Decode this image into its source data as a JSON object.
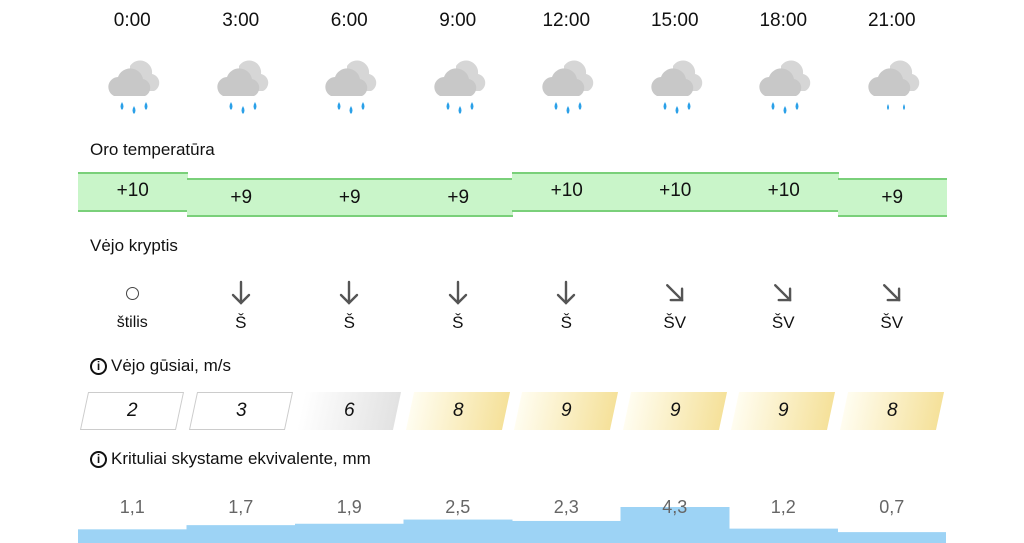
{
  "hours": [
    "0:00",
    "3:00",
    "6:00",
    "9:00",
    "12:00",
    "15:00",
    "18:00",
    "21:00"
  ],
  "weather_icons": [
    "cloud-rain-icon",
    "cloud-rain-icon",
    "cloud-rain-icon",
    "cloud-rain-icon",
    "cloud-rain-icon",
    "cloud-rain-icon",
    "cloud-rain-icon",
    "cloud-light-rain-icon"
  ],
  "temperature": {
    "label": "Oro temperatūra",
    "values": [
      "+10",
      "+9",
      "+9",
      "+9",
      "+10",
      "+10",
      "+10",
      "+9"
    ],
    "color": "#c9f5c9"
  },
  "wind_direction": {
    "label": "Vėjo kryptis",
    "arrows": [
      "calm",
      "down",
      "down",
      "down",
      "down",
      "down-right",
      "down-right",
      "down-right"
    ],
    "labels": [
      "štilis",
      "Š",
      "Š",
      "Š",
      "Š",
      "ŠV",
      "ŠV",
      "ŠV"
    ]
  },
  "wind_gusts": {
    "label": "Vėjo gūsiai, m/s",
    "values": [
      "2",
      "3",
      "6",
      "8",
      "9",
      "9",
      "9",
      "8"
    ]
  },
  "precipitation": {
    "label": "Krituliai skystame ekvivalente, mm",
    "values": [
      "1,1",
      "1,7",
      "1,9",
      "2,5",
      "2,3",
      "4,3",
      "1,2",
      "0,7"
    ],
    "amounts": [
      1.1,
      1.7,
      1.9,
      2.5,
      2.3,
      4.3,
      1.2,
      0.7
    ],
    "color": "#9dd3f5"
  }
}
